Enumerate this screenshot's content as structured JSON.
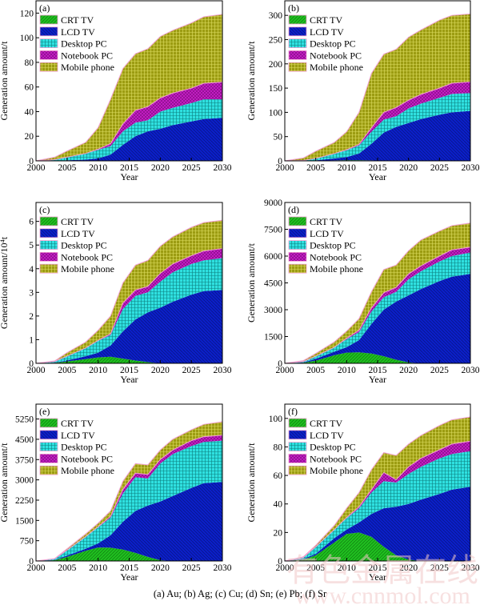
{
  "caption": "(a) Au; (b) Ag; (c) Cu; (d) Sn; (e) Pb; (f) Sr",
  "watermark": {
    "cn": "有色金属在线",
    "url": "www.cnnmol.com"
  },
  "colors": {
    "CRT TV": "#1fbf1f",
    "LCD TV": "#0b1fc8",
    "Desktop PC": "#2fe0e0",
    "Notebook PC": "#c81ec8",
    "Mobile phone": "#9c9c12",
    "border": "#f0a0d0"
  },
  "chart_data": [
    {
      "type": "area",
      "stacked": true,
      "panel_label": "(a)",
      "xlabel": "Year",
      "ylabel": "Generation amount/t",
      "xlim": [
        2000,
        2030
      ],
      "ylim": [
        0,
        130
      ],
      "yticks": [
        0,
        20,
        40,
        60,
        80,
        100,
        120
      ],
      "xticks": [
        2000,
        2005,
        2010,
        2015,
        2020,
        2025,
        2030
      ],
      "legend": "top-left",
      "grid": false,
      "x": [
        2000,
        2003,
        2005,
        2008,
        2010,
        2012,
        2014,
        2016,
        2018,
        2020,
        2022,
        2025,
        2027,
        2030
      ],
      "series": [
        {
          "name": "CRT TV",
          "values": [
            0,
            0,
            0,
            0,
            0,
            0,
            0,
            0,
            0,
            0,
            0,
            0,
            0,
            0
          ]
        },
        {
          "name": "LCD TV",
          "values": [
            0,
            0,
            0.5,
            1,
            2,
            5,
            13,
            20,
            24,
            26,
            29,
            32,
            34,
            35
          ]
        },
        {
          "name": "Desktop PC",
          "values": [
            0,
            1,
            2.5,
            5,
            7,
            7,
            11,
            11,
            9,
            14,
            14,
            15,
            16,
            15
          ]
        },
        {
          "name": "Notebook PC",
          "values": [
            0,
            0,
            0,
            0,
            0.5,
            2,
            6,
            10,
            11,
            11,
            12,
            12,
            13,
            14
          ]
        },
        {
          "name": "Mobile phone",
          "values": [
            0,
            2,
            5,
            9,
            17.5,
            36,
            45,
            46,
            47,
            50,
            51,
            53,
            54,
            55
          ]
        }
      ]
    },
    {
      "type": "area",
      "stacked": true,
      "panel_label": "(b)",
      "xlabel": "Year",
      "ylabel": "Generation amount/t",
      "xlim": [
        2000,
        2030
      ],
      "ylim": [
        0,
        330
      ],
      "yticks": [
        0,
        50,
        100,
        150,
        200,
        250,
        300
      ],
      "xticks": [
        2000,
        2005,
        2010,
        2015,
        2020,
        2025,
        2030
      ],
      "legend": "top-left",
      "grid": false,
      "x": [
        2000,
        2003,
        2005,
        2008,
        2010,
        2012,
        2014,
        2016,
        2018,
        2020,
        2022,
        2025,
        2027,
        2030
      ],
      "series": [
        {
          "name": "CRT TV",
          "values": [
            0,
            0,
            0.5,
            1,
            1.5,
            1.5,
            1,
            0.5,
            0,
            0,
            0,
            0,
            0,
            0
          ]
        },
        {
          "name": "LCD TV",
          "values": [
            0,
            0,
            0.5,
            4,
            6.5,
            13.5,
            34,
            57.5,
            70,
            78,
            86,
            95,
            100,
            103
          ]
        },
        {
          "name": "Desktop PC",
          "values": [
            0,
            1,
            4,
            10,
            14,
            17,
            25,
            27,
            22,
            30,
            32,
            35,
            38,
            37
          ]
        },
        {
          "name": "Notebook PC",
          "values": [
            0,
            0,
            0,
            0,
            1,
            2,
            8,
            15,
            18,
            17,
            19,
            20,
            22,
            23
          ]
        },
        {
          "name": "Mobile phone",
          "values": [
            0,
            5,
            15,
            23,
            37,
            66,
            112,
            120,
            120,
            130,
            133,
            140,
            140,
            140
          ]
        }
      ]
    },
    {
      "type": "area",
      "stacked": true,
      "panel_label": "(c)",
      "xlabel": "Year",
      "ylabel": "Generation amount/10⁴t",
      "xlim": [
        2000,
        2030
      ],
      "ylim": [
        0,
        6.8
      ],
      "yticks": [
        0,
        1,
        2,
        3,
        4,
        5,
        6
      ],
      "xticks": [
        2000,
        2005,
        2010,
        2015,
        2020,
        2025,
        2030
      ],
      "legend": "top-left",
      "grid": false,
      "x": [
        2000,
        2003,
        2005,
        2008,
        2010,
        2012,
        2014,
        2016,
        2018,
        2020,
        2022,
        2025,
        2027,
        2030
      ],
      "series": [
        {
          "name": "CRT TV",
          "values": [
            0,
            0.02,
            0.08,
            0.18,
            0.25,
            0.28,
            0.2,
            0.12,
            0.05,
            0,
            0,
            0,
            0,
            0
          ]
        },
        {
          "name": "LCD TV",
          "values": [
            0,
            0.01,
            0.04,
            0.12,
            0.2,
            0.47,
            1.15,
            1.73,
            2.1,
            2.35,
            2.6,
            2.9,
            3.05,
            3.1
          ]
        },
        {
          "name": "Desktop PC",
          "values": [
            0,
            0.05,
            0.18,
            0.35,
            0.5,
            0.45,
            0.95,
            1.0,
            0.85,
            1.1,
            1.25,
            1.3,
            1.3,
            1.35
          ]
        },
        {
          "name": "Notebook PC",
          "values": [
            0,
            0,
            0,
            0,
            0.02,
            0.05,
            0.25,
            0.25,
            0.25,
            0.35,
            0.35,
            0.35,
            0.4,
            0.4
          ]
        },
        {
          "name": "Mobile phone",
          "values": [
            0,
            0.02,
            0.15,
            0.25,
            0.43,
            0.75,
            0.85,
            1.05,
            1.1,
            1.15,
            1.15,
            1.2,
            1.2,
            1.2
          ]
        }
      ]
    },
    {
      "type": "area",
      "stacked": true,
      "panel_label": "(d)",
      "xlabel": "Year",
      "ylabel": "Generation amount/t",
      "xlim": [
        2000,
        2030
      ],
      "ylim": [
        0,
        9000
      ],
      "yticks": [
        0,
        1500,
        3000,
        4500,
        6000,
        7500,
        9000
      ],
      "xticks": [
        2000,
        2005,
        2010,
        2015,
        2020,
        2025,
        2030
      ],
      "legend": "top-left",
      "grid": false,
      "x": [
        2000,
        2003,
        2005,
        2008,
        2010,
        2012,
        2014,
        2016,
        2018,
        2020,
        2022,
        2025,
        2027,
        2030
      ],
      "series": [
        {
          "name": "CRT TV",
          "values": [
            0,
            30,
            150,
            450,
            600,
            620,
            550,
            400,
            200,
            50,
            0,
            0,
            0,
            0
          ]
        },
        {
          "name": "LCD TV",
          "values": [
            0,
            20,
            100,
            200,
            300,
            680,
            1650,
            2600,
            3250,
            3750,
            4150,
            4600,
            4850,
            5000
          ]
        },
        {
          "name": "Desktop PC",
          "values": [
            0,
            50,
            150,
            250,
            450,
            450,
            700,
            700,
            550,
            900,
            1000,
            1100,
            1150,
            1200
          ]
        },
        {
          "name": "Notebook PC",
          "values": [
            0,
            0,
            0,
            0,
            50,
            100,
            200,
            250,
            250,
            300,
            300,
            300,
            350,
            300
          ]
        },
        {
          "name": "Mobile phone",
          "values": [
            0,
            50,
            150,
            300,
            400,
            650,
            900,
            1300,
            1250,
            1300,
            1450,
            1400,
            1350,
            1350
          ]
        }
      ]
    },
    {
      "type": "area",
      "stacked": true,
      "panel_label": "(e)",
      "xlabel": "Year",
      "ylabel": "Generation amount/t",
      "xlim": [
        2000,
        2030
      ],
      "ylim": [
        0,
        5800
      ],
      "yticks": [
        0,
        750,
        1500,
        2250,
        3000,
        3750,
        4500,
        5250
      ],
      "xticks": [
        2000,
        2005,
        2010,
        2015,
        2020,
        2025,
        2030
      ],
      "legend": "top-left",
      "grid": false,
      "x": [
        2000,
        2003,
        2005,
        2008,
        2010,
        2012,
        2014,
        2016,
        2018,
        2020,
        2022,
        2025,
        2027,
        2030
      ],
      "series": [
        {
          "name": "CRT TV",
          "values": [
            0,
            30,
            150,
            380,
            500,
            490,
            420,
            300,
            150,
            30,
            0,
            0,
            0,
            0
          ]
        },
        {
          "name": "LCD TV",
          "values": [
            0,
            10,
            50,
            70,
            150,
            460,
            1030,
            1550,
            1900,
            2170,
            2400,
            2700,
            2880,
            2920
          ]
        },
        {
          "name": "Desktop PC",
          "values": [
            0,
            40,
            200,
            450,
            600,
            650,
            1050,
            1250,
            1000,
            1400,
            1550,
            1550,
            1520,
            1530
          ]
        },
        {
          "name": "Notebook PC",
          "values": [
            0,
            0,
            0,
            0,
            20,
            50,
            150,
            150,
            150,
            150,
            150,
            200,
            200,
            200
          ]
        },
        {
          "name": "Mobile phone",
          "values": [
            0,
            10,
            50,
            100,
            130,
            200,
            300,
            350,
            350,
            350,
            400,
            400,
            450,
            500
          ]
        }
      ]
    },
    {
      "type": "area",
      "stacked": true,
      "panel_label": "(f)",
      "xlabel": "Year",
      "ylabel": "Generation amount/t",
      "xlim": [
        2000,
        2030
      ],
      "ylim": [
        0,
        110
      ],
      "yticks": [
        0,
        20,
        40,
        60,
        80,
        100
      ],
      "xticks": [
        2000,
        2005,
        2010,
        2015,
        2020,
        2025,
        2030
      ],
      "legend": "top-left",
      "grid": false,
      "x": [
        2000,
        2003,
        2005,
        2008,
        2010,
        2012,
        2014,
        2016,
        2018,
        2020,
        2022,
        2025,
        2027,
        2030
      ],
      "series": [
        {
          "name": "CRT TV",
          "values": [
            0,
            1,
            4,
            13,
            19,
            20,
            17,
            10,
            4,
            1,
            0,
            0,
            0,
            0
          ]
        },
        {
          "name": "LCD TV",
          "values": [
            0,
            0.5,
            1,
            3,
            3,
            7,
            16,
            27,
            34,
            39,
            43,
            47,
            50,
            52
          ]
        },
        {
          "name": "Desktop PC",
          "values": [
            0,
            1,
            5,
            6,
            8,
            10,
            15,
            19,
            17,
            21,
            23,
            25,
            25,
            25
          ]
        },
        {
          "name": "Notebook PC",
          "values": [
            0,
            0,
            0,
            0,
            0.5,
            1,
            2,
            6,
            2,
            5,
            6,
            6,
            7,
            7
          ]
        },
        {
          "name": "Mobile phone",
          "values": [
            0,
            0.5,
            1,
            3,
            6.5,
            10,
            14,
            14,
            17,
            16,
            16,
            17,
            17,
            17
          ]
        }
      ]
    }
  ]
}
